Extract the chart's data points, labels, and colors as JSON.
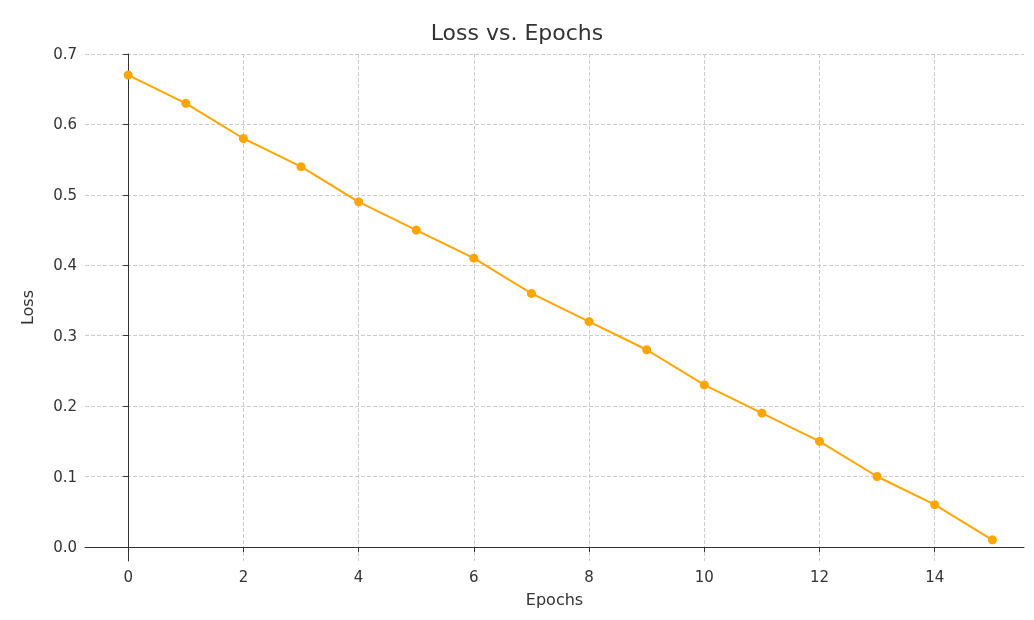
{
  "chart_data": {
    "type": "line",
    "title": "Loss vs. Epochs",
    "xlabel": "Epochs",
    "ylabel": "Loss",
    "x": [
      0,
      1,
      2,
      3,
      4,
      5,
      6,
      7,
      8,
      9,
      10,
      11,
      12,
      13,
      14,
      15
    ],
    "series": [
      {
        "color": "#ffa500",
        "values": [
          0.67,
          0.63,
          0.58,
          0.54,
          0.49,
          0.45,
          0.41,
          0.36,
          0.32,
          0.28,
          0.23,
          0.19,
          0.15,
          0.1,
          0.06,
          0.01
        ]
      }
    ],
    "xlim": [
      -0.75,
      15.55
    ],
    "xticks": [
      0,
      2,
      4,
      6,
      8,
      10,
      12,
      14
    ],
    "ylim": [
      -0.02,
      0.7
    ],
    "yticks": [
      {
        "value": 0,
        "label": "0.0"
      },
      0.1,
      0.2,
      0.3,
      0.4,
      0.5,
      0.6,
      0.7
    ],
    "grid": true,
    "marker": "circle",
    "line_style": "solid"
  }
}
